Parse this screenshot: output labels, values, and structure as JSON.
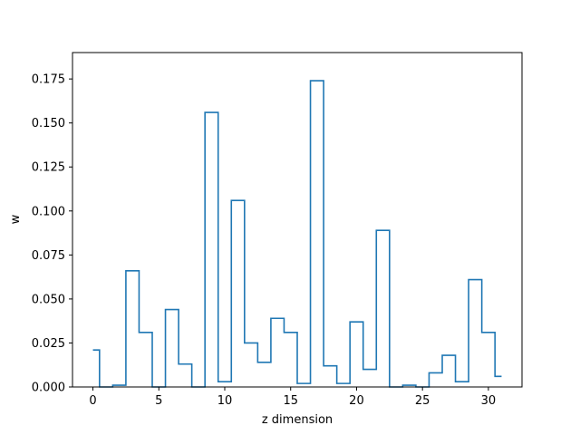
{
  "chart_data": {
    "type": "line",
    "drawstyle": "steps-mid",
    "xlabel": "z dimension",
    "ylabel": "w",
    "xlim": [
      -1.55,
      32.55
    ],
    "ylim": [
      0,
      0.19
    ],
    "xticks": [
      0,
      5,
      10,
      15,
      20,
      25,
      30
    ],
    "xtick_labels": [
      "0",
      "5",
      "10",
      "15",
      "20",
      "25",
      "30"
    ],
    "yticks": [
      0.0,
      0.025,
      0.05,
      0.075,
      0.1,
      0.125,
      0.15,
      0.175
    ],
    "ytick_labels": [
      "0.000",
      "0.025",
      "0.050",
      "0.075",
      "0.100",
      "0.125",
      "0.150",
      "0.175"
    ],
    "grid": false,
    "line_color": "#1f77b4",
    "x": [
      0,
      1,
      2,
      3,
      4,
      5,
      6,
      7,
      8,
      9,
      10,
      11,
      12,
      13,
      14,
      15,
      16,
      17,
      18,
      19,
      20,
      21,
      22,
      23,
      24,
      25,
      26,
      27,
      28,
      29,
      30,
      31
    ],
    "y": [
      0.021,
      0.0,
      0.001,
      0.066,
      0.031,
      0.0,
      0.044,
      0.013,
      0.0,
      0.156,
      0.003,
      0.106,
      0.025,
      0.014,
      0.039,
      0.031,
      0.002,
      0.174,
      0.012,
      0.002,
      0.037,
      0.01,
      0.089,
      0.0,
      0.001,
      0.0,
      0.008,
      0.018,
      0.003,
      0.061,
      0.031,
      0.006
    ]
  }
}
